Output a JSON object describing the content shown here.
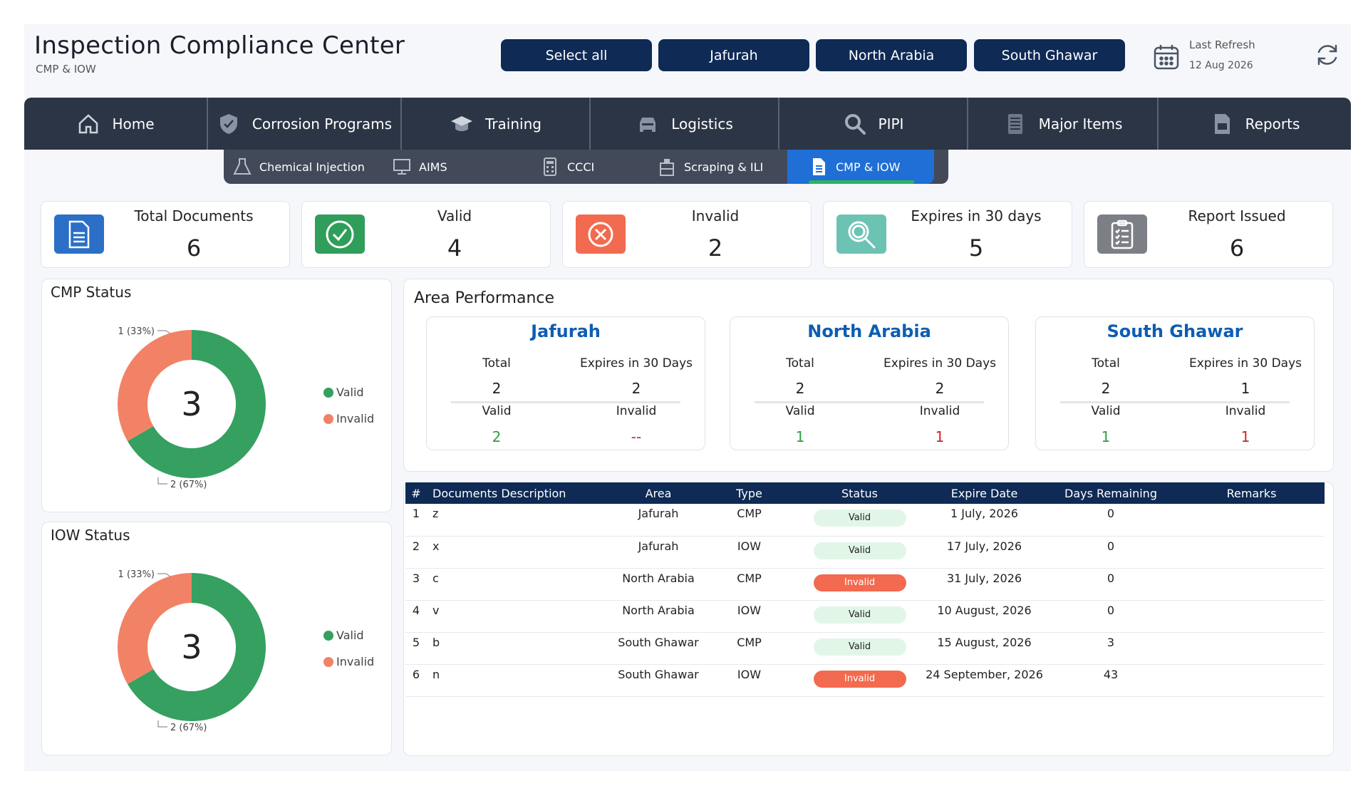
{
  "header": {
    "title": "Inspection Compliance Center",
    "subtitle": "CMP & IOW",
    "area_buttons": [
      "Select all",
      "Jafurah",
      "North Arabia",
      "South Ghawar"
    ],
    "refresh_label": "Last Refresh",
    "refresh_date": "12 Aug 2026"
  },
  "nav": {
    "items": [
      {
        "label": "Home",
        "icon": "home-icon"
      },
      {
        "label": "Corrosion Programs",
        "icon": "shield-icon"
      },
      {
        "label": "Training",
        "icon": "graduation-cap-icon"
      },
      {
        "label": "Logistics",
        "icon": "car-icon"
      },
      {
        "label": "PIPI",
        "icon": "search-icon"
      },
      {
        "label": "Major Items",
        "icon": "list-icon"
      },
      {
        "label": "Reports",
        "icon": "report-icon"
      }
    ],
    "sub_items": [
      {
        "label": "Chemical Injection",
        "icon": "flask-icon"
      },
      {
        "label": "AIMS",
        "icon": "monitor-icon"
      },
      {
        "label": "CCCI",
        "icon": "calculator-icon"
      },
      {
        "label": "Scraping & ILI",
        "icon": "pipe-icon"
      },
      {
        "label": "CMP & IOW",
        "icon": "document-icon",
        "active": true
      }
    ]
  },
  "kpis": [
    {
      "label": "Total Documents",
      "value": "6",
      "icon": "document-icon",
      "color": "#2b6fc7"
    },
    {
      "label": "Valid",
      "value": "4",
      "icon": "check-circle-icon",
      "color": "#2f9e5b"
    },
    {
      "label": "Invalid",
      "value": "2",
      "icon": "x-circle-icon",
      "color": "#f26a4f"
    },
    {
      "label": "Expires in 30 days",
      "value": "5",
      "icon": "search-icon",
      "color": "#6cc3b4"
    },
    {
      "label": "Report Issued",
      "value": "6",
      "icon": "clipboard-icon",
      "color": "#7c7f86"
    }
  ],
  "colors": {
    "valid": "#35a060",
    "invalid": "#f28266",
    "area_name": "#0e5db3",
    "value_valid": "#2f9e46",
    "value_invalid": "#c62828"
  },
  "chart_data": [
    {
      "type": "pie",
      "title": "CMP Status",
      "center_label": "3",
      "labels": [
        "Valid",
        "Invalid"
      ],
      "values": [
        2,
        1
      ],
      "data_labels": [
        "2 (67%)",
        "1 (33%)"
      ],
      "legend": "right"
    },
    {
      "type": "pie",
      "title": "IOW Status",
      "center_label": "3",
      "labels": [
        "Valid",
        "Invalid"
      ],
      "values": [
        2,
        1
      ],
      "data_labels": [
        "2 (67%)",
        "1 (33%)"
      ],
      "legend": "right"
    }
  ],
  "area_performance": {
    "title": "Area Performance",
    "labels": {
      "total": "Total",
      "expires": "Expires in 30 Days",
      "valid": "Valid",
      "invalid": "Invalid"
    },
    "areas": [
      {
        "name": "Jafurah",
        "total": "2",
        "expires": "2",
        "valid": "2",
        "invalid": "--"
      },
      {
        "name": "North Arabia",
        "total": "2",
        "expires": "2",
        "valid": "1",
        "invalid": "1"
      },
      {
        "name": "South Ghawar",
        "total": "2",
        "expires": "1",
        "valid": "1",
        "invalid": "1"
      }
    ]
  },
  "table": {
    "headers": [
      "#",
      "Documents Description",
      "Area",
      "Type",
      "Status",
      "Expire Date",
      "Days Remaining",
      "Remarks"
    ],
    "rows": [
      {
        "n": "1",
        "desc": "z",
        "area": "Jafurah",
        "type": "CMP",
        "status": "Valid",
        "expire": "1 July, 2026",
        "days": "0",
        "remarks": ""
      },
      {
        "n": "2",
        "desc": "x",
        "area": "Jafurah",
        "type": "IOW",
        "status": "Valid",
        "expire": "17 July, 2026",
        "days": "0",
        "remarks": ""
      },
      {
        "n": "3",
        "desc": "c",
        "area": "North Arabia",
        "type": "CMP",
        "status": "Invalid",
        "expire": "31 July, 2026",
        "days": "0",
        "remarks": ""
      },
      {
        "n": "4",
        "desc": "v",
        "area": "North Arabia",
        "type": "IOW",
        "status": "Valid",
        "expire": "10 August, 2026",
        "days": "0",
        "remarks": ""
      },
      {
        "n": "5",
        "desc": "b",
        "area": "South Ghawar",
        "type": "CMP",
        "status": "Valid",
        "expire": "15 August, 2026",
        "days": "3",
        "remarks": ""
      },
      {
        "n": "6",
        "desc": "n",
        "area": "South Ghawar",
        "type": "IOW",
        "status": "Invalid",
        "expire": "24 September, 2026",
        "days": "43",
        "remarks": ""
      }
    ]
  }
}
